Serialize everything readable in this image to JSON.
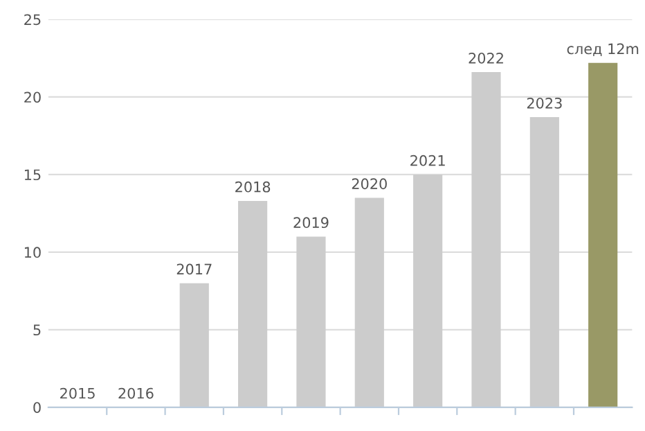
{
  "chart_data": {
    "type": "bar",
    "categories": [
      "2015",
      "2016",
      "2017",
      "2018",
      "2019",
      "2020",
      "2021",
      "2022",
      "2023",
      "след 12m"
    ],
    "values": [
      0,
      0,
      8.0,
      13.3,
      11.0,
      13.5,
      15.0,
      21.6,
      18.7,
      22.2
    ],
    "colors": [
      "#cccccc",
      "#cccccc",
      "#cccccc",
      "#cccccc",
      "#cccccc",
      "#cccccc",
      "#cccccc",
      "#cccccc",
      "#cccccc",
      "#999966"
    ],
    "ylim": [
      0,
      25
    ],
    "yticks": [
      0,
      5,
      10,
      15,
      20,
      25
    ],
    "grid": "y"
  }
}
